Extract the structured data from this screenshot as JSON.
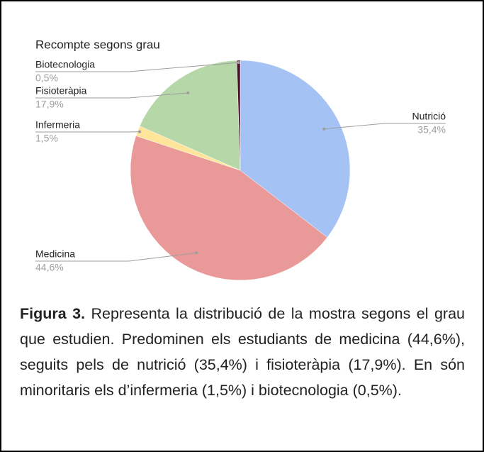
{
  "chart_data": {
    "type": "pie",
    "title": "Recompte segons grau",
    "categories": [
      "Nutrició",
      "Medicina",
      "Infermeria",
      "Fisioteràpia",
      "Biotecnologia"
    ],
    "values": [
      35.4,
      44.6,
      1.5,
      17.9,
      0.5
    ],
    "value_labels": [
      "35,4%",
      "44,6%",
      "1,5%",
      "17,9%",
      "0,5%"
    ],
    "colors": [
      "#a4c2f4",
      "#ea9999",
      "#ffe599",
      "#b6d7a8",
      "#4c1130"
    ]
  },
  "caption": {
    "label": "Figura 3.",
    "text": "Representa la distribució de la mostra segons el grau que estudien. Predominen els estudiants de medicina (44,6%), seguits pels de nutrició (35,4%) i fisioteràpia (17,9%). En són minoritaris els d’infermeria (1,5%) i biotecnologia (0,5%)."
  }
}
